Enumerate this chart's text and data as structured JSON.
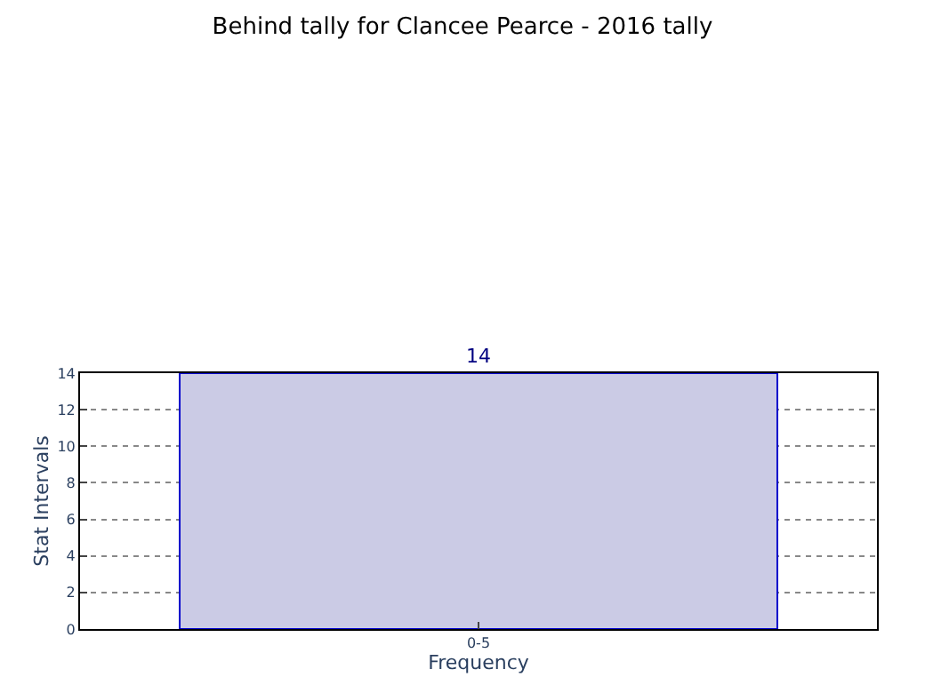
{
  "chart_data": {
    "type": "bar",
    "title": "Behind tally for Clancee Pearce - 2016 tally",
    "xlabel": "Frequency",
    "ylabel": "Stat Intervals",
    "categories": [
      "0-5"
    ],
    "values": [
      14
    ],
    "color": "#cbcbe5",
    "ylim": [
      0,
      14
    ],
    "yticks": [
      0,
      2,
      4,
      6,
      8,
      10,
      12,
      14
    ],
    "grid": true,
    "data_labels": true
  }
}
